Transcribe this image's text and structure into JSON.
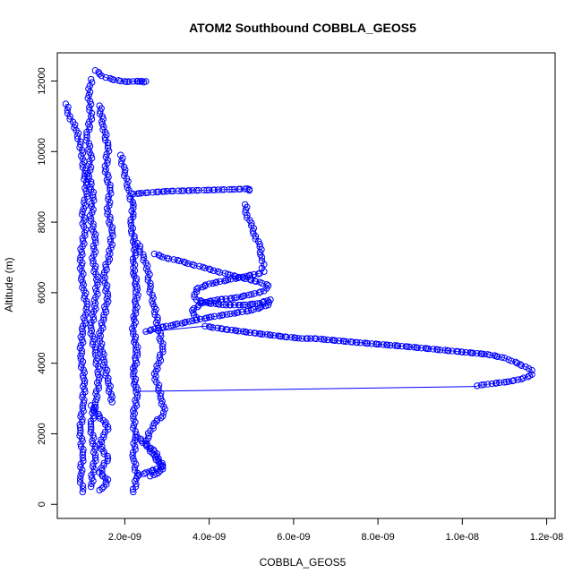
{
  "chart_data": {
    "type": "scatter",
    "title": "ATOM2 Southbound COBBLA_GEOS5",
    "xlabel": "COBBLA_GEOS5",
    "ylabel": "Altitude (m)",
    "xlim": [
      4e-10,
      1.22e-08
    ],
    "ylim": [
      -400,
      12800
    ],
    "x_ticks": [
      {
        "value": 2e-09,
        "label": "2.0e-09"
      },
      {
        "value": 4e-09,
        "label": "4.0e-09"
      },
      {
        "value": 6e-09,
        "label": "6.0e-09"
      },
      {
        "value": 8e-09,
        "label": "8.0e-09"
      },
      {
        "value": 1e-08,
        "label": "1.0e-08"
      },
      {
        "value": 1.2e-08,
        "label": "1.2e-08"
      }
    ],
    "y_ticks": [
      {
        "value": 0,
        "label": "0"
      },
      {
        "value": 2000,
        "label": "2000"
      },
      {
        "value": 4000,
        "label": "4000"
      },
      {
        "value": 6000,
        "label": "6000"
      },
      {
        "value": 8000,
        "label": "8000"
      },
      {
        "value": 10000,
        "label": "10000"
      },
      {
        "value": 12000,
        "label": "12000"
      }
    ],
    "color": "#0000ff",
    "marker": "open-circle",
    "series": [
      {
        "x": [
          6e-10,
          7e-10,
          8.5e-10,
          9.5e-10,
          1e-09,
          1.05e-09,
          1.1e-09,
          1e-09,
          1.05e-09,
          9.5e-10,
          1e-09,
          1.1e-09,
          1e-09,
          9.5e-10,
          1.05e-09,
          1e-09,
          9.5e-10,
          1e-09,
          9.5e-10,
          1e-09
        ],
        "y": [
          11350,
          11000,
          10600,
          10200,
          9800,
          9300,
          8800,
          8300,
          7700,
          7000,
          6300,
          5600,
          4900,
          4200,
          3500,
          2800,
          2100,
          1400,
          800,
          350
        ]
      },
      {
        "x": [
          1.2e-09,
          1.15e-09,
          1.2e-09,
          1.1e-09,
          1.2e-09,
          1.15e-09,
          1.25e-09,
          1.2e-09,
          1.3e-09,
          1.25e-09,
          1.35e-09,
          1.3e-09,
          1.2e-09,
          1.3e-09,
          1.4e-09,
          1.3e-09,
          1.2e-09,
          1.3e-09,
          1.2e-09
        ],
        "y": [
          12050,
          11600,
          11000,
          10400,
          9900,
          9300,
          8700,
          8100,
          7500,
          6900,
          6300,
          5700,
          5000,
          4300,
          3600,
          2900,
          2200,
          1400,
          500
        ]
      },
      {
        "x": [
          1.4e-09,
          1.5e-09,
          1.6e-09,
          1.55e-09,
          1.65e-09,
          1.6e-09,
          1.7e-09,
          1.65e-09,
          1.5e-09,
          1.6e-09,
          1.5e-09,
          1.4e-09,
          1.5e-09,
          1.6e-09,
          1.7e-09
        ],
        "y": [
          11300,
          10700,
          10100,
          9500,
          8900,
          8300,
          7700,
          7100,
          6500,
          5900,
          5300,
          4700,
          4100,
          3500,
          2900
        ]
      },
      {
        "x": [
          1.9e-09,
          2e-09,
          2.1e-09,
          2.2e-09,
          2.15e-09,
          2.25e-09,
          2.2e-09,
          2.3e-09,
          2.25e-09,
          2.2e-09,
          2.3e-09,
          2.2e-09,
          2.3e-09,
          2.2e-09,
          2.25e-09,
          2.2e-09,
          2.3e-09,
          2.2e-09
        ],
        "y": [
          9900,
          9400,
          8900,
          8400,
          7900,
          7300,
          6700,
          6100,
          5500,
          4900,
          4300,
          3700,
          3100,
          2500,
          1900,
          1300,
          800,
          350
        ]
      },
      {
        "x": [
          2.3e-09,
          2.45e-09,
          2.55e-09,
          2.6e-09,
          2.7e-09,
          2.8e-09,
          2.9e-09,
          2.8e-09,
          2.7e-09,
          2.8e-09,
          2.85e-09,
          2.95e-09,
          2.9e-09,
          2.7e-09,
          2.5e-09,
          2.6e-09,
          2.7e-09,
          2.8e-09,
          2.9e-09,
          2.8e-09,
          2.6e-09
        ],
        "y": [
          7400,
          7000,
          6600,
          6100,
          5600,
          5000,
          4400,
          4000,
          3700,
          3300,
          3000,
          2700,
          2500,
          2300,
          1800,
          1500,
          1400,
          1200,
          1000,
          900,
          800
        ]
      },
      {
        "x": [
          1.3e-09,
          1.4e-09,
          1.55e-09,
          1.7e-09,
          1.9e-09,
          2.05e-09,
          2.2e-09,
          2.4e-09,
          2.5e-09,
          2.45e-09,
          2.3e-09
        ],
        "y": [
          12300,
          12200,
          12100,
          12050,
          12000,
          11980,
          11990,
          12000,
          11990,
          11970,
          12000
        ]
      },
      {
        "x": [
          2.2e-09,
          2.5e-09,
          2.8e-09,
          3.1e-09,
          3.4e-09,
          3.7e-09,
          4e-09,
          4.3e-09,
          4.6e-09,
          4.85e-09,
          4.9e-09,
          4.95e-09,
          4.95e-09
        ],
        "y": [
          8800,
          8830,
          8860,
          8880,
          8890,
          8900,
          8910,
          8920,
          8930,
          8940,
          8950,
          8930,
          8900
        ]
      },
      {
        "x": [
          4.85e-09,
          4.9e-09,
          5e-09,
          5.1e-09,
          5.2e-09,
          5.25e-09,
          5.3e-09,
          5.25e-09,
          5.3e-09
        ],
        "y": [
          8500,
          8200,
          7900,
          7600,
          7300,
          7000,
          6800,
          6700,
          6600
        ]
      },
      {
        "x": [
          5.2e-09,
          4.8e-09,
          4.4e-09,
          4e-09,
          3.7e-09,
          3.65e-09,
          3.7e-09,
          4e-09,
          4.4e-09,
          4.8e-09,
          5.2e-09,
          5.45e-09,
          5.4e-09,
          5e-09,
          4.5e-09,
          4e-09,
          3.6e-09,
          3.2e-09,
          2.8e-09,
          2.5e-09
        ],
        "y": [
          6550,
          6450,
          6350,
          6250,
          6100,
          5950,
          5800,
          5700,
          5650,
          5650,
          5700,
          5800,
          5650,
          5500,
          5400,
          5300,
          5200,
          5100,
          5000,
          4900
        ]
      },
      {
        "x": [
          2.7e-09,
          3e-09,
          3.3e-09,
          3.6e-09,
          3.9e-09,
          4.2e-09,
          4.5e-09,
          4.8e-09,
          5e-09,
          5.2e-09,
          5.4e-09,
          5.3e-09,
          5e-09,
          4.6e-09,
          4.2e-09,
          3.8e-09,
          3.6e-09,
          3.7e-09
        ],
        "y": [
          7100,
          6980,
          6900,
          6800,
          6700,
          6600,
          6500,
          6420,
          6350,
          6300,
          6200,
          6050,
          5950,
          5850,
          5800,
          5700,
          5500,
          5300
        ]
      },
      {
        "x": [
          3.9e-09,
          4.4e-09,
          5.1e-09,
          5.8e-09,
          6.2e-09,
          6.5e-09,
          7.4e-09,
          8.7e-09,
          9.9e-09,
          1.06e-08,
          1.1e-08,
          1.11e-08,
          1.13e-08,
          1.15e-08,
          1.165e-08,
          1.165e-08,
          1.14e-08,
          1.11e-08,
          1.07e-08,
          1.045e-08,
          1.035e-08
        ],
        "y": [
          5050,
          4960,
          4850,
          4750,
          4700,
          4700,
          4600,
          4470,
          4330,
          4250,
          4150,
          4100,
          4000,
          3900,
          3800,
          3680,
          3550,
          3480,
          3420,
          3380,
          3360
        ]
      },
      {
        "x": [
          1.2e-09,
          1.4e-09,
          1.6e-09,
          1.5e-09,
          1.4e-09,
          1.5e-09,
          1.6e-09,
          1.5e-09,
          1.4e-09,
          1.6e-09,
          1.5e-09,
          1.4e-09
        ],
        "y": [
          2800,
          2500,
          2200,
          1900,
          1700,
          1500,
          1300,
          1100,
          900,
          700,
          500,
          400
        ]
      },
      {
        "x": [
          2.3e-09,
          2.5e-09,
          2.7e-09,
          2.8e-09,
          2.9e-09,
          2.75e-09,
          2.5e-09,
          2.3e-09
        ],
        "y": [
          1900,
          1700,
          1500,
          1300,
          1100,
          1000,
          900,
          800
        ]
      }
    ],
    "connector_lines": [
      {
        "x": [
          2.3e-09,
          1.035e-08
        ],
        "y": [
          3200,
          3340
        ]
      },
      {
        "x": [
          2.45e-09,
          3.9e-09
        ],
        "y": [
          4880,
          5050
        ]
      },
      {
        "x": [
          2.2e-09,
          2.2e-09
        ],
        "y": [
          3200,
          8800
        ]
      }
    ],
    "grid": false,
    "legend": "none"
  }
}
